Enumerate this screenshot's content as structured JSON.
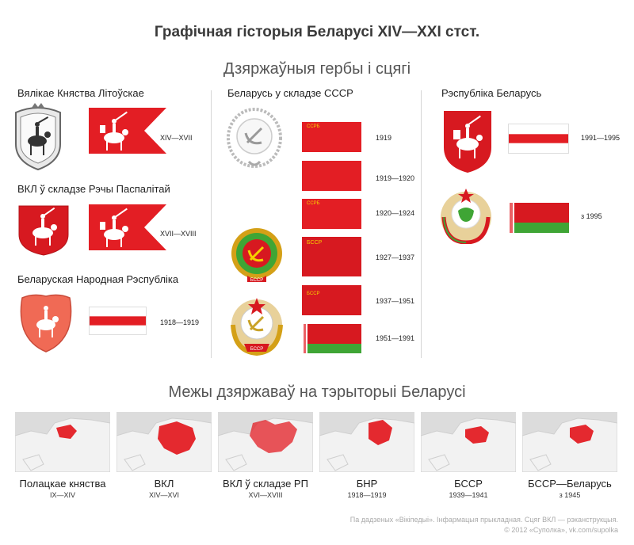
{
  "title": "Графічная гісторыя Беларусі XIV—XXI стст.",
  "subtitle_arms": "Дзяржаўныя гербы і сцягі",
  "subtitle_borders": "Межы дзяржаваў на тэрыторыі Беларусі",
  "colors": {
    "red": "#e31e24",
    "white": "#ffffff",
    "green": "#3fa535",
    "map_bg": "#dcdcdc",
    "map_land": "#f2f2f2"
  },
  "left": {
    "sections": [
      {
        "heading": "Вялікае Княства Літоўскае",
        "years": "XIV—XVII"
      },
      {
        "heading": "ВКЛ ў складзе Рэчы Паспалітай",
        "years": "XVII—XVIII"
      },
      {
        "heading": "Беларуская Народная Рэспубліка",
        "years": "1918—1919"
      }
    ]
  },
  "middle": {
    "heading": "Беларусь у складзе СССР",
    "flags": [
      {
        "label": "ССРБ",
        "years": "1919"
      },
      {
        "label": "",
        "years": "1919—1920"
      },
      {
        "label": "ССРБ",
        "years": "1920—1924"
      },
      {
        "label": "БССР",
        "years": "1927—1937"
      },
      {
        "label": "БССР",
        "years": "1937—1951"
      },
      {
        "label": "",
        "years": "1951—1991"
      }
    ],
    "emblem_ribbons": [
      "БССР",
      "БССР"
    ]
  },
  "right": {
    "heading": "Рэспубліка Беларусь",
    "rows": [
      {
        "years": "1991—1995"
      },
      {
        "years": "з 1995"
      }
    ]
  },
  "maps": [
    {
      "label": "Полацкае княства",
      "years": "IX—XIV"
    },
    {
      "label": "ВКЛ",
      "years": "XIV—XVI"
    },
    {
      "label": "ВКЛ ў складзе РП",
      "years": "XVI—XVIII"
    },
    {
      "label": "БНР",
      "years": "1918—1919"
    },
    {
      "label": "БССР",
      "years": "1939—1941"
    },
    {
      "label": "БССР—Беларусь",
      "years": "з 1945"
    }
  ],
  "footer": {
    "line1": "Па дадзеных «Вікіпедыі». Інфармацыя прыкладная. Сцяг ВКЛ — рэканструкцыя.",
    "line2": "© 2012 «Суполка», vk.com/supolka"
  }
}
